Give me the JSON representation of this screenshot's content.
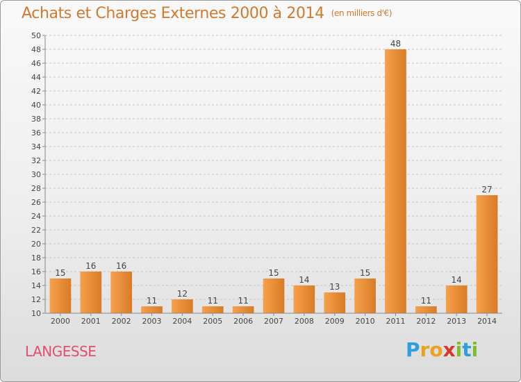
{
  "title": "Achats et Charges Externes 2000 à 2014",
  "title_unit": "(en milliers d'€)",
  "commune": "LANGESSE",
  "logo": {
    "letters": [
      "P",
      "r",
      "o",
      "x",
      "i",
      "t",
      "i"
    ],
    "colors": [
      "#2f9de0",
      "#e8a21c",
      "#f0a020",
      "#d43a2a",
      "#7bbf2a",
      "#2f9de0",
      "#7bbf2a"
    ]
  },
  "colors": {
    "title": "#cf7a2e",
    "commune": "#e0506e",
    "bar_light": "#f6a14e",
    "bar_dark": "#d97b24"
  },
  "chart_data": {
    "type": "bar",
    "categories": [
      "2000",
      "2001",
      "2002",
      "2003",
      "2004",
      "2005",
      "2006",
      "2007",
      "2008",
      "2009",
      "2010",
      "2011",
      "2012",
      "2013",
      "2014"
    ],
    "values": [
      15,
      16,
      16,
      11,
      12,
      11,
      11,
      15,
      14,
      13,
      15,
      48,
      11,
      14,
      27
    ],
    "ylim": [
      10,
      50
    ],
    "yticks": [
      10,
      12,
      14,
      16,
      18,
      20,
      22,
      24,
      26,
      28,
      30,
      32,
      34,
      36,
      38,
      40,
      42,
      44,
      46,
      48,
      50
    ],
    "grid": true,
    "data_labels": true
  }
}
